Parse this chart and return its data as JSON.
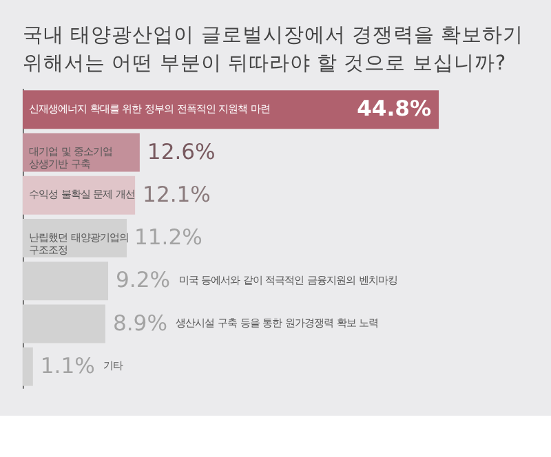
{
  "chart_data": {
    "type": "bar",
    "orientation": "horizontal",
    "title": "국내 태양광산업이 글로벌시장에서 경쟁력을 확보하기 위해서는 어떤 부분이 뒤따라야 할 것으로 보십니까?",
    "categories": [
      "신재생에너지 확대를 위한 정부의 전폭적인 지원책 마련",
      "대기업 및 중소기업 상생기반 구축",
      "수익성 불확실 문제 개선",
      "난립했던 태양광기업의 구조조정",
      "미국 등에서와 같이 적극적인 금융지원의 벤치마킹",
      "생산시설 구축 등을 통한 원가경쟁력 확보 노력",
      "기타"
    ],
    "values": [
      44.8,
      12.6,
      12.1,
      11.2,
      9.2,
      8.9,
      1.1
    ],
    "value_labels": [
      "44.8%",
      "12.6%",
      "12.1%",
      "11.2%",
      "9.2%",
      "8.9%",
      "1.1%"
    ],
    "colors": [
      "#b0616e",
      "#c3909a",
      "#e0c5c9",
      "#d2d2d2",
      "#d2d2d2",
      "#d2d2d2",
      "#d2d2d2"
    ]
  }
}
